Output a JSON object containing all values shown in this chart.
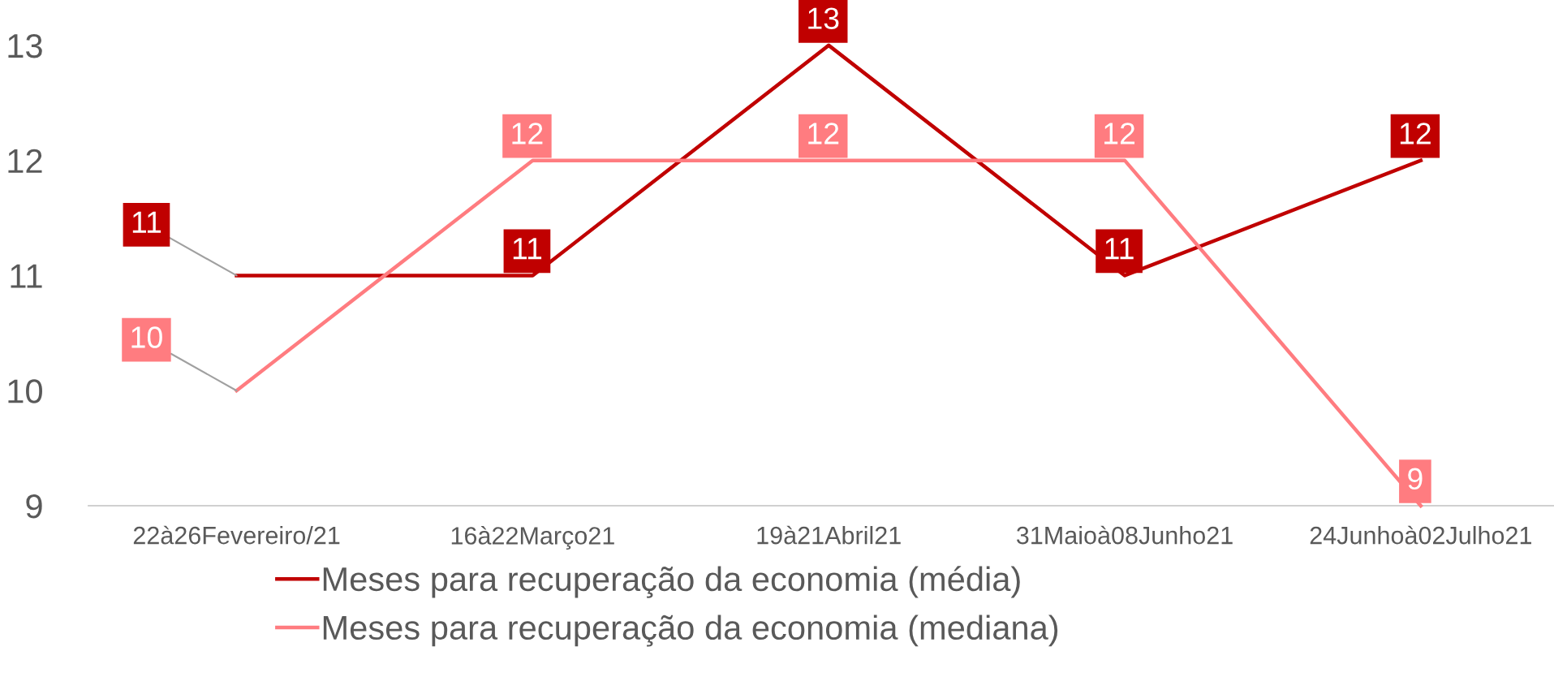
{
  "chart_data": {
    "type": "line",
    "categories": [
      "22à26Fevereiro/21",
      "16à22Março21",
      "19à21Abril21",
      "31Maioà08Junho21",
      "24Junhoà02Julho21"
    ],
    "series": [
      {
        "name": "Meses para recuperação da economia (média)",
        "color": "#c00000",
        "values": [
          11,
          11,
          13,
          11,
          12
        ]
      },
      {
        "name": "Meses para recuperação da economia (mediana)",
        "color": "#ff7c80",
        "values": [
          10,
          12,
          12,
          12,
          9
        ]
      }
    ],
    "ylim": [
      9,
      13
    ],
    "yticks": [
      9,
      10,
      11,
      12,
      13
    ],
    "data_labels": true,
    "legend": "bottom",
    "grid": false,
    "marker": "none",
    "line_style": "solid"
  }
}
